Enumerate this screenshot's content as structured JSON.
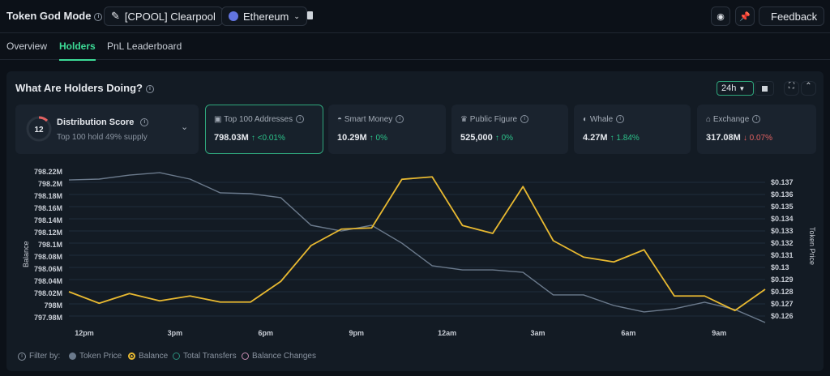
{
  "header": {
    "title": "Token God Mode",
    "token": "[CPOOL] Clearpool",
    "chain": "Ethereum",
    "feedback": "Feedback"
  },
  "tabs": [
    {
      "label": "Overview"
    },
    {
      "label": "Holders",
      "active": true
    },
    {
      "label": "PnL Leaderboard"
    }
  ],
  "panel": {
    "title": "What Are Holders Doing?",
    "timeframe": "24h"
  },
  "distribution": {
    "label": "Distribution Score",
    "score": "12",
    "sub": "Top 100 hold 49% supply"
  },
  "cards": [
    {
      "label": "Top 100 Addresses",
      "value": "798.03M",
      "change": "↑ <0.01%",
      "dir": "up",
      "icon": "wallet-icon"
    },
    {
      "label": "Smart Money",
      "value": "10.29M",
      "change": "↑ 0%",
      "dir": "up",
      "icon": "smart-money-icon"
    },
    {
      "label": "Public Figure",
      "value": "525,000",
      "change": "↑ 0%",
      "dir": "up",
      "icon": "public-figure-icon"
    },
    {
      "label": "Whale",
      "value": "4.27M",
      "change": "↑ 1.84%",
      "dir": "up",
      "icon": "whale-icon"
    },
    {
      "label": "Exchange",
      "value": "317.08M",
      "change": "↓ 0.07%",
      "dir": "down",
      "icon": "bank-icon"
    }
  ],
  "legend": {
    "filter": "Filter by:",
    "items": [
      {
        "label": "Token Price",
        "color": "#6b7a8c",
        "on": true
      },
      {
        "label": "Balance",
        "color": "#e8b931",
        "on": true
      },
      {
        "label": "Total Transfers",
        "color": "#2a8c7a",
        "on": false
      },
      {
        "label": "Balance Changes",
        "color": "#c58bb0",
        "on": false
      }
    ]
  },
  "colors": {
    "accent": "#3ddc97",
    "balance": "#e8b931",
    "price": "#6b7a8c",
    "up": "#2cc28a",
    "down": "#e26161"
  },
  "chart_data": {
    "type": "line",
    "xticks": [
      "12pm",
      "3pm",
      "6pm",
      "9pm",
      "12am",
      "3am",
      "6am",
      "9am"
    ],
    "ylabel": "Balance",
    "y2label": "Token Price",
    "yticks": [
      "798.22M",
      "798.2M",
      "798.18M",
      "798.16M",
      "798.14M",
      "798.12M",
      "798.1M",
      "798.08M",
      "798.06M",
      "798.04M",
      "798.02M",
      "798M",
      "797.98M"
    ],
    "y2ticks": [
      "$0.137",
      "$0.136",
      "$0.135",
      "$0.134",
      "$0.133",
      "$0.132",
      "$0.131",
      "$0.13",
      "$0.129",
      "$0.128",
      "$0.127",
      "$0.126"
    ],
    "ylim": [
      797.98,
      798.22
    ],
    "y2lim": [
      0.126,
      0.137
    ],
    "grid": true,
    "series": [
      {
        "name": "Balance",
        "axis": "left",
        "color": "#e8b931",
        "values": [
          798.02,
          798.001,
          798.017,
          798.005,
          798.013,
          798.003,
          798.003,
          798.037,
          798.096,
          798.123,
          798.125,
          798.205,
          798.209,
          798.129,
          798.116,
          798.193,
          798.104,
          798.077,
          798.069,
          798.089,
          798.013,
          798.013,
          797.989,
          798.024
        ]
      },
      {
        "name": "Token Price",
        "axis": "right",
        "color": "#6b7a8c",
        "values": [
          0.13713,
          0.1372,
          0.13753,
          0.13773,
          0.1372,
          0.13607,
          0.136,
          0.13567,
          0.1334,
          0.13293,
          0.1334,
          0.13193,
          0.13007,
          0.12973,
          0.12973,
          0.12953,
          0.12767,
          0.12767,
          0.1268,
          0.12627,
          0.12653,
          0.12707,
          0.12647,
          0.1254
        ]
      }
    ]
  }
}
